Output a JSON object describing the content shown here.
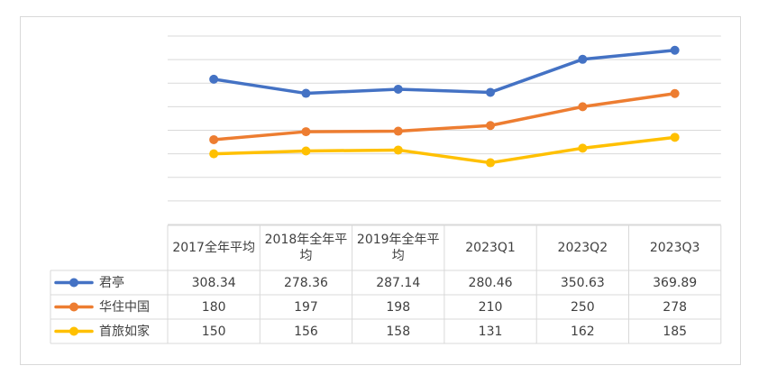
{
  "chart_data": {
    "type": "line",
    "title": "",
    "categories": [
      "2017全年平均",
      "2018年全年平均",
      "2019年全年平均",
      "2023Q1",
      "2023Q2",
      "2023Q3"
    ],
    "ylim": [
      0,
      400
    ],
    "ytick_step": 50,
    "grid": true,
    "legend": "data-table-left",
    "series": [
      {
        "name": "君亭",
        "color": "#4472c4",
        "values": [
          308.34,
          278.36,
          287.14,
          280.46,
          350.63,
          369.89
        ],
        "labels": [
          "308.34",
          "278.36",
          "287.14",
          "280.46",
          "350.63",
          "369.89"
        ]
      },
      {
        "name": "华住中国",
        "color": "#ed7d31",
        "values": [
          180,
          197,
          198,
          210,
          250,
          278
        ],
        "labels": [
          "180",
          "197",
          "198",
          "210",
          "250",
          "278"
        ]
      },
      {
        "name": "首旅如家",
        "color": "#ffc000",
        "values": [
          150,
          156,
          158,
          131,
          162,
          185
        ],
        "labels": [
          "150",
          "156",
          "158",
          "131",
          "162",
          "185"
        ]
      }
    ]
  }
}
